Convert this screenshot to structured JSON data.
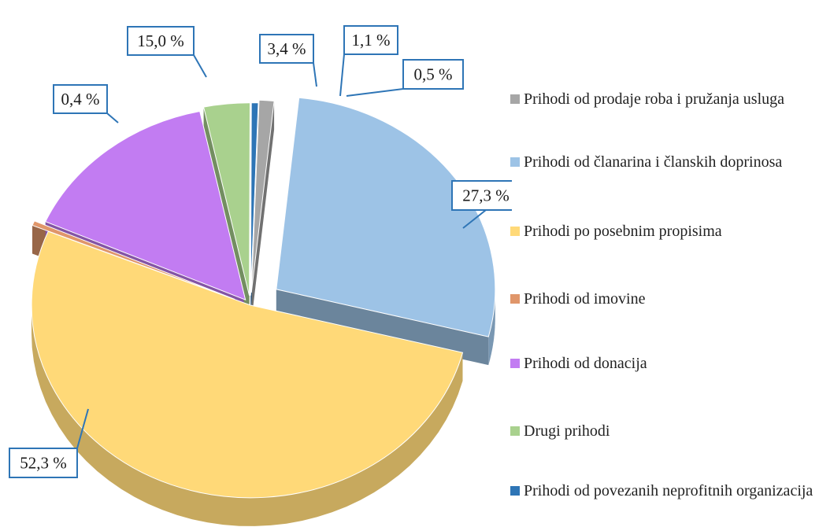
{
  "chart_data": {
    "type": "pie",
    "categories": [
      "Prihodi od prodaje roba i pružanja usluga",
      "Prihodi od članarina i članskih doprinosa",
      "Prihodi po posebnim propisima",
      "Prihodi od imovine",
      "Prihodi od donacija",
      "Drugi prihodi",
      "Prihodi od povezanih neprofitnih organizacija"
    ],
    "values": [
      1.1,
      27.3,
      52.3,
      0.4,
      15.0,
      3.4,
      0.5
    ],
    "data_labels": [
      "1,1 %",
      "27,3 %",
      "52,3 %",
      "0,4 %",
      "15,0 %",
      "3,4 %",
      "0,5 %"
    ],
    "colors": [
      "#a6a6a6",
      "#9dc3e6",
      "#ffd978",
      "#e0966a",
      "#c27cf2",
      "#a9d18e",
      "#2e75b6"
    ],
    "legend_position": "right",
    "style": "3d-exploded"
  }
}
